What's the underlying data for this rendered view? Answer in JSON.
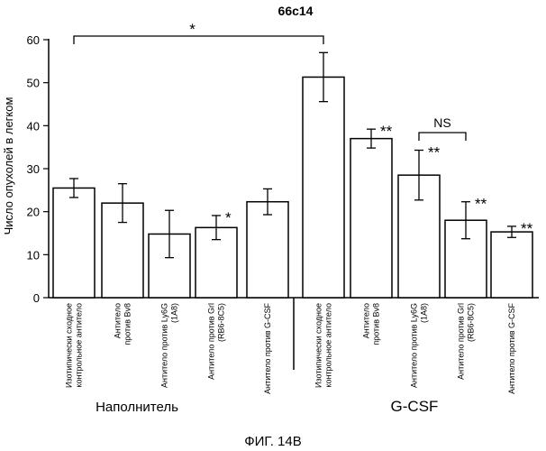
{
  "chart_data": {
    "type": "bar",
    "title": "66c14",
    "ylabel": "Число опухолей в легком",
    "xlabel": "",
    "ylim": [
      0,
      60
    ],
    "yticks": [
      0,
      10,
      20,
      30,
      40,
      50,
      60
    ],
    "grid": false,
    "categories": [
      [
        "Изотипически сходное",
        "контрольное антитело"
      ],
      [
        "Антитело",
        "против Bv8"
      ],
      [
        "Антитело против Ly6G",
        "(1A8)"
      ],
      [
        "Антитело против Grl",
        "(RB6-8C5)"
      ],
      [
        "Антитело против G-CSF"
      ],
      [
        "Изотипически сходное",
        "контрольное антитело"
      ],
      [
        "Антитело",
        "против Bv8"
      ],
      [
        "Антитело против Ly6G",
        "(1A8)"
      ],
      [
        "Антитело против Grl",
        "(RB6-8C5)"
      ],
      [
        "Антитело против G-CSF"
      ]
    ],
    "values": [
      25.5,
      22,
      14.8,
      16.3,
      22.3,
      51.3,
      37,
      28.5,
      18,
      15.3
    ],
    "errors": [
      2.2,
      4.5,
      5.5,
      2.8,
      3.0,
      5.7,
      2.2,
      5.8,
      4.3,
      1.3
    ],
    "significance": [
      "",
      "",
      "",
      "*",
      "",
      "",
      "**",
      "**",
      "**",
      "**"
    ],
    "groups": [
      {
        "label": "Наполнитель",
        "indices": [
          0,
          1,
          2,
          3,
          4
        ]
      },
      {
        "label": "G-CSF",
        "indices": [
          5,
          6,
          7,
          8,
          9
        ]
      }
    ],
    "comparisons": [
      {
        "from": 0,
        "to": 5,
        "label": "*"
      },
      {
        "from": 7,
        "to": 8,
        "label": "NS"
      }
    ]
  },
  "figure_caption": "ФИГ. 14В"
}
